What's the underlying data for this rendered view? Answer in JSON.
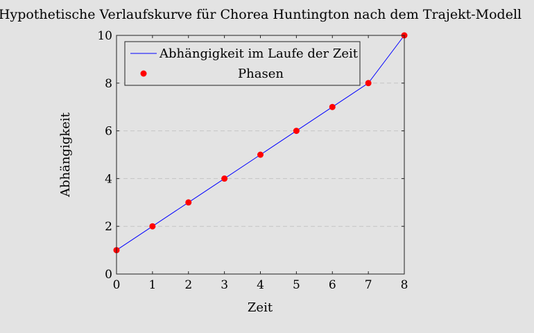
{
  "chart_data": {
    "type": "line",
    "title": "Hypothetische Verlaufskurve für Chorea Huntington nach dem Trajekt-Modell",
    "xlabel": "Zeit",
    "ylabel": "Abhängigkeit",
    "xlim": [
      0,
      8
    ],
    "ylim": [
      0,
      10
    ],
    "xticks": [
      0,
      1,
      2,
      3,
      4,
      5,
      6,
      7,
      8
    ],
    "yticks": [
      0,
      2,
      4,
      6,
      8,
      10
    ],
    "grid": "horizontal dashed",
    "legend_position": "top-left",
    "series": [
      {
        "name": "Abhängigkeit im Laufe der Zeit",
        "kind": "line",
        "color": "#0000ff",
        "x": [
          0,
          1,
          2,
          3,
          4,
          5,
          6,
          7,
          8
        ],
        "y": [
          1,
          2,
          3,
          4,
          5,
          6,
          7,
          8,
          10
        ]
      },
      {
        "name": "Phasen",
        "kind": "markers",
        "color": "#ff0000",
        "x": [
          0,
          1,
          2,
          3,
          4,
          5,
          6,
          7,
          8
        ],
        "y": [
          1,
          2,
          3,
          4,
          5,
          6,
          7,
          8,
          10
        ]
      }
    ]
  }
}
